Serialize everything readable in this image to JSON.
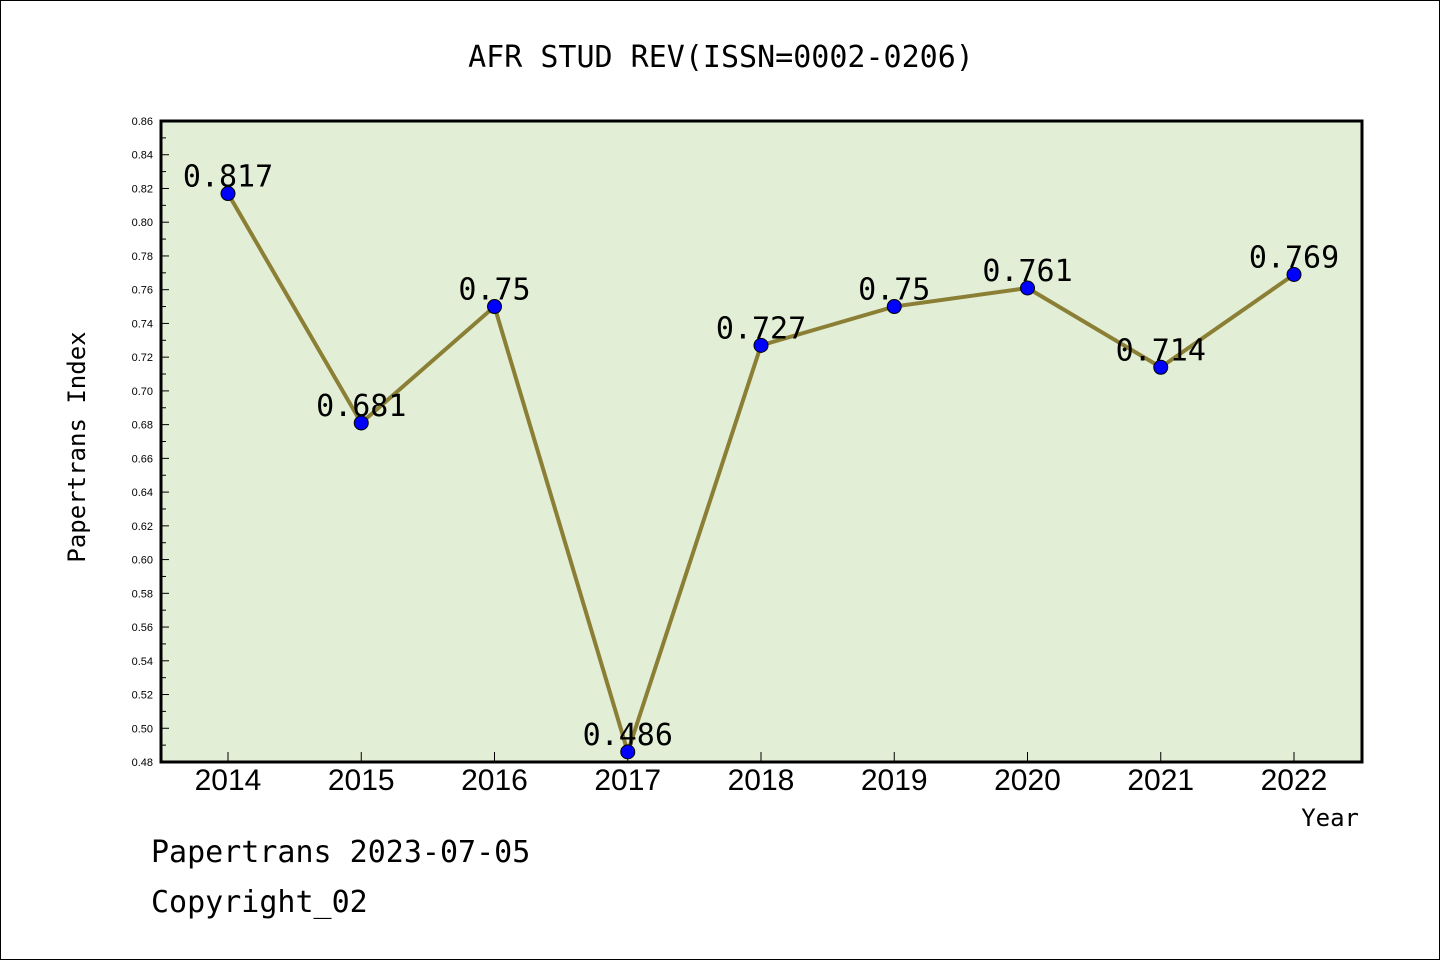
{
  "chart_data": {
    "type": "line",
    "title": "AFR STUD REV(ISSN=0002-0206)",
    "xlabel": "Year",
    "ylabel": "Papertrans Index",
    "categories": [
      "2014",
      "2015",
      "2016",
      "2017",
      "2018",
      "2019",
      "2020",
      "2021",
      "2022"
    ],
    "values": [
      0.817,
      0.681,
      0.75,
      0.486,
      0.727,
      0.75,
      0.761,
      0.714,
      0.769
    ],
    "data_labels": [
      "0.817",
      "0.681",
      "0.75",
      "0.486",
      "0.727",
      "0.75",
      "0.761",
      "0.714",
      "0.769"
    ],
    "ylim": [
      0.48,
      0.86
    ],
    "yticks": [
      "0.48",
      "0.50",
      "0.52",
      "0.54",
      "0.56",
      "0.58",
      "0.60",
      "0.62",
      "0.64",
      "0.66",
      "0.68",
      "0.70",
      "0.72",
      "0.74",
      "0.76",
      "0.78",
      "0.80",
      "0.82",
      "0.84",
      "0.86"
    ],
    "grid": false,
    "colors": {
      "plot_bg": "#e2efd6",
      "line": "#8b7f35",
      "marker": "#0000ff"
    }
  },
  "footer": {
    "line1": "Papertrans 2023-07-05",
    "line2": "Copyright_02"
  }
}
